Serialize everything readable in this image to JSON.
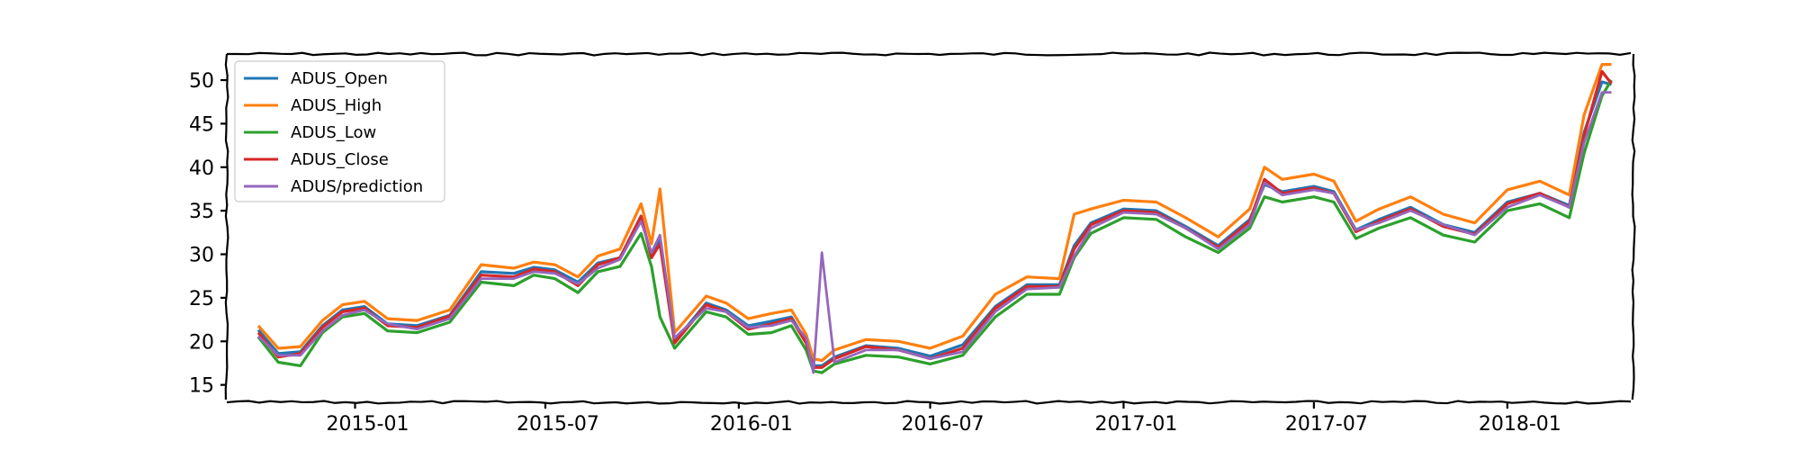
{
  "chart_data": {
    "type": "line",
    "title": "",
    "xlabel": "",
    "ylabel": "",
    "xlim": [
      "2014-09-01",
      "2018-05-01"
    ],
    "ylim": [
      13,
      53
    ],
    "x_ticks": [
      "2015-01",
      "2015-07",
      "2016-01",
      "2016-07",
      "2017-01",
      "2017-07",
      "2018-01"
    ],
    "y_ticks": [
      15,
      20,
      25,
      30,
      35,
      40,
      45,
      50
    ],
    "grid": false,
    "legend_position": "upper-left",
    "x": [
      "2014-10-01",
      "2014-10-20",
      "2014-11-10",
      "2014-12-01",
      "2014-12-20",
      "2015-01-10",
      "2015-02-01",
      "2015-03-01",
      "2015-04-01",
      "2015-05-01",
      "2015-06-01",
      "2015-06-20",
      "2015-07-10",
      "2015-08-01",
      "2015-08-20",
      "2015-09-10",
      "2015-09-30",
      "2015-10-10",
      "2015-10-18",
      "2015-11-01",
      "2015-12-01",
      "2015-12-20",
      "2016-01-10",
      "2016-02-01",
      "2016-02-20",
      "2016-03-05",
      "2016-03-12",
      "2016-03-20",
      "2016-04-01",
      "2016-05-01",
      "2016-06-01",
      "2016-07-01",
      "2016-08-01",
      "2016-09-01",
      "2016-10-01",
      "2016-11-01",
      "2016-11-15",
      "2016-12-01",
      "2017-01-01",
      "2017-02-01",
      "2017-03-01",
      "2017-04-01",
      "2017-05-01",
      "2017-05-15",
      "2017-06-01",
      "2017-07-01",
      "2017-07-20",
      "2017-08-10",
      "2017-09-01",
      "2017-10-01",
      "2017-11-01",
      "2017-12-01",
      "2018-01-01",
      "2018-02-01",
      "2018-03-01",
      "2018-03-15",
      "2018-04-01",
      "2018-04-10"
    ],
    "series": [
      {
        "name": "ADUS_Open",
        "color": "#1f77b4",
        "values": [
          21.3,
          18.6,
          18.8,
          21.8,
          23.6,
          24.0,
          22.0,
          21.8,
          23.0,
          28.0,
          27.8,
          28.5,
          28.2,
          26.8,
          29.0,
          29.6,
          34.2,
          29.8,
          31.8,
          20.0,
          24.4,
          23.6,
          21.8,
          22.3,
          22.8,
          20.0,
          17.2,
          17.2,
          18.2,
          19.5,
          19.2,
          18.3,
          19.6,
          24.0,
          26.5,
          26.5,
          31.0,
          33.6,
          35.2,
          35.0,
          33.2,
          31.0,
          34.0,
          38.0,
          37.2,
          37.8,
          37.2,
          32.8,
          34.0,
          35.4,
          33.4,
          32.5,
          36.0,
          37.0,
          35.6,
          44.0,
          49.8,
          49.5
        ]
      },
      {
        "name": "ADUS_High",
        "color": "#ff7f0e",
        "values": [
          21.8,
          19.2,
          19.4,
          22.4,
          24.2,
          24.6,
          22.6,
          22.4,
          23.6,
          28.8,
          28.4,
          29.1,
          28.8,
          27.4,
          29.8,
          30.6,
          35.8,
          31.2,
          37.5,
          21.0,
          25.2,
          24.4,
          22.6,
          23.2,
          23.6,
          20.8,
          18.0,
          17.8,
          19.0,
          20.2,
          20.0,
          19.2,
          20.6,
          25.4,
          27.4,
          27.2,
          34.6,
          35.2,
          36.2,
          36.0,
          34.2,
          32.0,
          35.2,
          40.0,
          38.6,
          39.2,
          38.4,
          33.8,
          35.2,
          36.6,
          34.6,
          33.6,
          37.4,
          38.4,
          36.8,
          46.0,
          51.8,
          51.8
        ]
      },
      {
        "name": "ADUS_Low",
        "color": "#2ca02c",
        "values": [
          20.5,
          17.6,
          17.2,
          21.0,
          22.8,
          23.2,
          21.2,
          21.0,
          22.2,
          26.8,
          26.4,
          27.6,
          27.2,
          25.6,
          28.0,
          28.6,
          32.4,
          28.6,
          22.8,
          19.2,
          23.4,
          22.8,
          20.8,
          21.0,
          21.8,
          19.0,
          16.6,
          16.4,
          17.4,
          18.4,
          18.2,
          17.4,
          18.4,
          22.8,
          25.4,
          25.4,
          29.6,
          32.4,
          34.2,
          34.0,
          32.0,
          30.2,
          33.0,
          36.6,
          36.0,
          36.6,
          36.0,
          31.8,
          33.0,
          34.2,
          32.2,
          31.4,
          35.0,
          35.8,
          34.2,
          41.6,
          48.2,
          50.0
        ]
      },
      {
        "name": "ADUS_Close",
        "color": "#d62728",
        "values": [
          21.0,
          18.2,
          18.6,
          21.6,
          23.4,
          23.8,
          21.8,
          21.6,
          22.9,
          27.6,
          27.4,
          28.3,
          28.0,
          26.4,
          28.8,
          29.6,
          34.4,
          29.6,
          31.2,
          19.8,
          24.2,
          23.4,
          21.4,
          22.0,
          22.6,
          19.8,
          17.0,
          17.0,
          18.0,
          19.4,
          19.0,
          18.0,
          19.2,
          23.8,
          26.3,
          26.3,
          30.6,
          33.4,
          35.0,
          34.8,
          33.0,
          30.8,
          33.8,
          38.6,
          37.0,
          37.6,
          37.0,
          32.6,
          33.8,
          35.2,
          33.2,
          32.3,
          35.8,
          37.0,
          35.4,
          43.6,
          51.0,
          49.6
        ]
      },
      {
        "name": "ADUS/prediction",
        "color": "#9467bd",
        "values": [
          20.6,
          18.4,
          18.4,
          21.2,
          23.0,
          23.6,
          22.0,
          21.4,
          22.6,
          27.2,
          27.2,
          28.0,
          27.8,
          26.6,
          28.4,
          29.4,
          33.8,
          30.2,
          32.2,
          20.4,
          23.8,
          23.4,
          21.6,
          21.8,
          22.4,
          20.4,
          16.4,
          30.2,
          17.6,
          19.0,
          19.0,
          18.0,
          18.8,
          23.4,
          26.0,
          26.2,
          29.8,
          33.0,
          34.8,
          34.6,
          33.0,
          30.6,
          33.4,
          38.2,
          36.8,
          37.4,
          37.0,
          32.8,
          33.6,
          35.0,
          33.4,
          32.2,
          35.4,
          36.8,
          35.4,
          42.8,
          48.6,
          48.6
        ]
      }
    ]
  }
}
